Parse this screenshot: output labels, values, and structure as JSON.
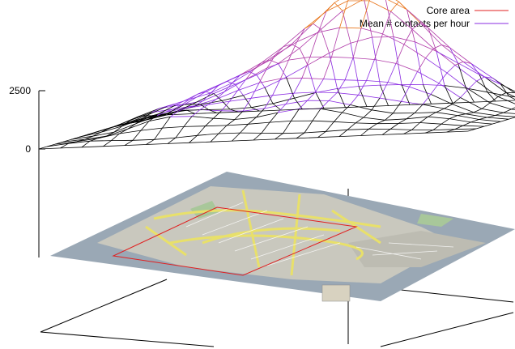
{
  "chart_data": {
    "type": "surface",
    "series": [
      {
        "name": "Core area",
        "color": "#e02020"
      },
      {
        "name": "Mean # contacts per hour",
        "color": "#8a2be2"
      }
    ],
    "z_ticks": [
      "2500",
      "0"
    ],
    "zlim": [
      0,
      2500
    ],
    "legend_position": "top-right",
    "grid": "wireframe 20x14",
    "underlay": "street map with a rectangular core area outline"
  }
}
